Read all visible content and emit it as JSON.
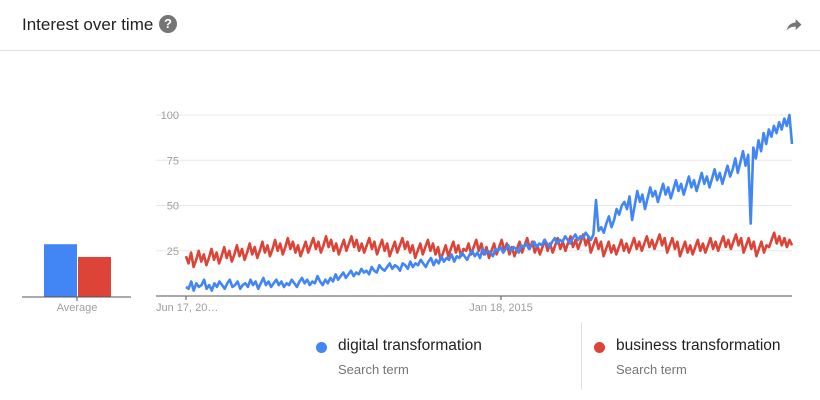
{
  "header": {
    "title": "Interest over time",
    "help_icon": "help-circle-icon",
    "share_icon": "share-arrow-icon"
  },
  "colors": {
    "series1": "#4285f4",
    "series2": "#db4437",
    "grid": "#e8e8e8",
    "axis": "#555555",
    "tick_text": "#9e9e9e"
  },
  "chart_data": [
    {
      "type": "bar",
      "categories": [
        "Average"
      ],
      "series": [
        {
          "name": "digital transformation",
          "values": [
            29
          ]
        },
        {
          "name": "business transformation",
          "values": [
            22
          ]
        }
      ],
      "ylim": [
        0,
        100
      ]
    },
    {
      "type": "line",
      "x_tick_labels": [
        "Jun 17, 20…",
        "Jan 18, 2015"
      ],
      "y_ticks": [
        25,
        50,
        75,
        100
      ],
      "ylim": [
        0,
        100
      ],
      "grid": true,
      "series": [
        {
          "name": "digital transformation",
          "values": [
            5,
            4,
            8,
            3,
            7,
            5,
            6,
            9,
            4,
            6,
            3,
            7,
            5,
            8,
            6,
            4,
            7,
            9,
            5,
            6,
            8,
            4,
            6,
            7,
            5,
            9,
            6,
            8,
            4,
            7,
            10,
            6,
            8,
            5,
            7,
            9,
            6,
            8,
            5,
            7,
            6,
            9,
            7,
            5,
            8,
            10,
            7,
            9,
            6,
            8,
            7,
            11,
            8,
            6,
            9,
            7,
            10,
            8,
            12,
            9,
            11,
            13,
            10,
            12,
            14,
            11,
            13,
            12,
            15,
            13,
            14,
            12,
            16,
            14,
            13,
            17,
            15,
            14,
            16,
            18,
            15,
            17,
            16,
            14,
            18,
            17,
            15,
            19,
            16,
            18,
            17,
            20,
            18,
            16,
            19,
            21,
            17,
            20,
            18,
            22,
            19,
            21,
            20,
            23,
            19,
            22,
            21,
            24,
            22,
            20,
            23,
            25,
            22,
            24,
            21,
            26,
            23,
            25,
            24,
            22,
            26,
            25,
            27,
            24,
            26,
            28,
            25,
            27,
            26,
            24,
            28,
            27,
            29,
            26,
            28,
            30,
            27,
            29,
            28,
            31,
            29,
            27,
            30,
            32,
            29,
            31,
            30,
            33,
            31,
            29,
            32,
            34,
            31,
            33,
            32,
            35,
            33,
            31,
            34,
            53,
            36,
            38,
            35,
            40,
            44,
            38,
            42,
            48,
            45,
            50,
            52,
            48,
            55,
            42,
            50,
            58,
            52,
            56,
            48,
            54,
            60,
            55,
            58,
            52,
            57,
            62,
            56,
            60,
            54,
            59,
            64,
            58,
            62,
            56,
            61,
            66,
            60,
            64,
            58,
            63,
            68,
            62,
            66,
            60,
            65,
            70,
            64,
            68,
            62,
            67,
            72,
            66,
            70,
            76,
            68,
            74,
            80,
            72,
            78,
            40,
            82,
            76,
            86,
            80,
            90,
            84,
            92,
            88,
            94,
            90,
            96,
            92,
            98,
            94,
            100,
            84
          ]
        },
        {
          "name": "business transformation",
          "values": [
            22,
            18,
            24,
            16,
            20,
            25,
            19,
            23,
            17,
            21,
            26,
            20,
            24,
            18,
            22,
            27,
            21,
            25,
            19,
            23,
            28,
            22,
            26,
            20,
            24,
            29,
            23,
            27,
            21,
            25,
            30,
            24,
            28,
            22,
            26,
            31,
            25,
            29,
            23,
            27,
            32,
            26,
            30,
            24,
            28,
            22,
            26,
            30,
            24,
            28,
            32,
            26,
            30,
            24,
            28,
            33,
            27,
            31,
            25,
            29,
            23,
            27,
            31,
            25,
            29,
            33,
            27,
            31,
            25,
            29,
            24,
            28,
            32,
            26,
            30,
            23,
            27,
            31,
            25,
            29,
            22,
            26,
            30,
            24,
            28,
            32,
            26,
            30,
            24,
            28,
            21,
            25,
            29,
            23,
            27,
            31,
            25,
            29,
            23,
            27,
            20,
            24,
            28,
            22,
            26,
            30,
            24,
            28,
            22,
            26,
            25,
            29,
            23,
            27,
            31,
            25,
            29,
            23,
            27,
            21,
            25,
            29,
            23,
            27,
            31,
            25,
            29,
            23,
            27,
            22,
            26,
            30,
            24,
            28,
            32,
            26,
            30,
            24,
            28,
            23,
            27,
            31,
            25,
            29,
            24,
            28,
            32,
            26,
            30,
            25,
            29,
            33,
            27,
            31,
            26,
            30,
            34,
            28,
            32,
            24,
            28,
            32,
            26,
            30,
            22,
            26,
            30,
            24,
            28,
            23,
            27,
            31,
            25,
            29,
            24,
            28,
            32,
            26,
            30,
            25,
            29,
            33,
            27,
            31,
            26,
            30,
            34,
            28,
            32,
            24,
            28,
            32,
            26,
            30,
            22,
            26,
            30,
            24,
            28,
            23,
            27,
            31,
            25,
            29,
            24,
            28,
            32,
            26,
            30,
            25,
            29,
            33,
            27,
            31,
            26,
            30,
            34,
            28,
            32,
            24,
            28,
            32,
            26,
            30,
            22,
            26,
            30,
            24,
            28,
            27,
            31,
            35,
            29,
            33,
            28,
            32,
            27,
            31,
            28
          ]
        }
      ]
    }
  ],
  "legend": [
    {
      "term": "digital transformation",
      "sub": "Search term",
      "color_key": "series1"
    },
    {
      "term": "business transformation",
      "sub": "Search term",
      "color_key": "series2"
    }
  ]
}
